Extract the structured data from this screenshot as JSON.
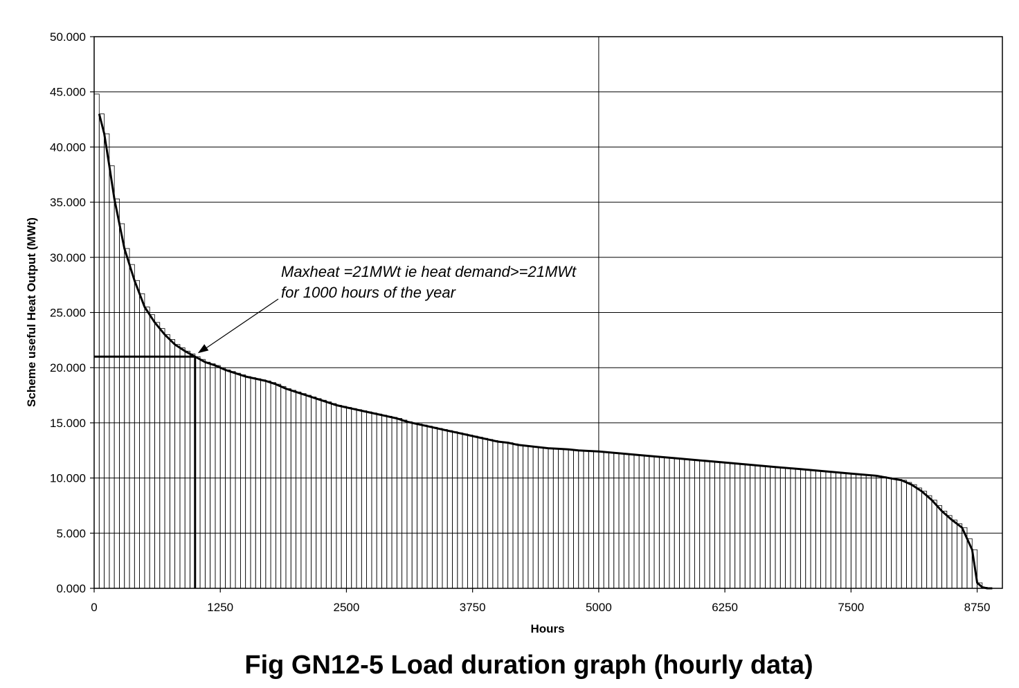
{
  "caption": "Fig GN12-5 Load duration graph (hourly data)",
  "chart_data": {
    "type": "area",
    "xlabel": "Hours",
    "ylabel": "Scheme useful Heat Output (MWt)",
    "xlim": [
      0,
      9000
    ],
    "ylim": [
      0,
      50
    ],
    "x_ticks": [
      0,
      1250,
      2500,
      3750,
      5000,
      6250,
      7500,
      8750
    ],
    "y_ticks": [
      0,
      5,
      10,
      15,
      20,
      25,
      30,
      35,
      40,
      45,
      50
    ],
    "y_tick_labels": [
      "0.000",
      "5.000",
      "10.000",
      "15.000",
      "20.000",
      "25.000",
      "30.000",
      "35.000",
      "40.000",
      "45.000",
      "50.000"
    ],
    "grid": {
      "horizontal": true,
      "vertical_at": [
        5000
      ]
    },
    "annotation": {
      "lines": [
        "Maxheat =21MWt ie heat demand>=21MWt",
        "for 1000 hours of the year"
      ],
      "arrow_to": [
        1000,
        21
      ]
    },
    "maxheat_level": 21,
    "maxheat_hours": 1000,
    "bar_width_hours": 50,
    "series": [
      {
        "x": [
          50,
          100,
          150,
          200,
          300,
          400,
          500,
          600,
          700,
          800,
          900,
          1000,
          1100,
          1200,
          1300,
          1400,
          1500,
          1600,
          1700,
          1800,
          1900,
          2000,
          2100,
          2200,
          2300,
          2400,
          2500,
          2600,
          2700,
          2800,
          2900,
          3000,
          3100,
          3200,
          3300,
          3400,
          3500,
          3600,
          3700,
          3800,
          3900,
          4000,
          4100,
          4200,
          4300,
          4400,
          4500,
          4600,
          4700,
          4800,
          4900,
          5000,
          5250,
          5500,
          5750,
          6000,
          6250,
          6500,
          6750,
          7000,
          7250,
          7500,
          7750,
          8000,
          8100,
          8200,
          8300,
          8400,
          8500,
          8600,
          8700,
          8750,
          8800,
          8850,
          8900
        ],
        "y": [
          43.0,
          41.2,
          38.3,
          35.3,
          30.8,
          27.9,
          25.5,
          24.1,
          23.0,
          22.1,
          21.5,
          21.0,
          20.5,
          20.2,
          19.8,
          19.5,
          19.2,
          19.0,
          18.8,
          18.5,
          18.1,
          17.8,
          17.5,
          17.2,
          16.9,
          16.6,
          16.4,
          16.2,
          16.0,
          15.8,
          15.6,
          15.4,
          15.1,
          14.9,
          14.7,
          14.5,
          14.3,
          14.1,
          13.9,
          13.7,
          13.5,
          13.3,
          13.2,
          13.0,
          12.9,
          12.8,
          12.7,
          12.65,
          12.6,
          12.5,
          12.45,
          12.4,
          12.2,
          12.0,
          11.8,
          11.6,
          11.4,
          11.2,
          11.0,
          10.8,
          10.6,
          10.4,
          10.2,
          9.8,
          9.4,
          8.8,
          8.0,
          7.0,
          6.2,
          5.5,
          3.5,
          0.5,
          0.1,
          0.0,
          0.0
        ]
      }
    ]
  }
}
